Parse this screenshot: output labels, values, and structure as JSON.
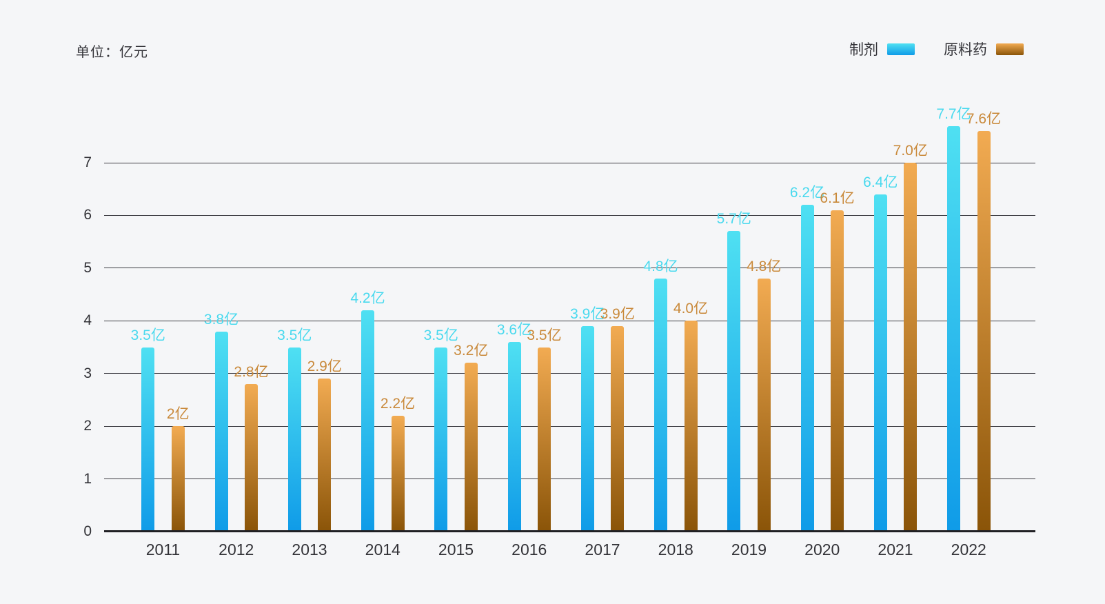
{
  "unit_label": "单位：亿元",
  "legend": {
    "items": [
      {
        "label": "制剂"
      },
      {
        "label": "原料药"
      }
    ]
  },
  "colors": {
    "background": "#f5f6f8",
    "gridline": "#3a3a40",
    "axis": "#202024",
    "text": "#323237"
  },
  "chart_data": {
    "type": "bar",
    "title": "",
    "xlabel": "",
    "ylabel": "单位：亿元",
    "categories": [
      "2011",
      "2012",
      "2013",
      "2014",
      "2015",
      "2016",
      "2017",
      "2018",
      "2019",
      "2020",
      "2021",
      "2022"
    ],
    "series": [
      {
        "name": "制剂",
        "values": [
          3.5,
          3.8,
          3.5,
          4.2,
          3.5,
          3.6,
          3.9,
          4.8,
          5.7,
          6.2,
          6.4,
          7.7
        ],
        "labels": [
          "3.5亿",
          "3.8亿",
          "3.5亿",
          "4.2亿",
          "3.5亿",
          "3.6亿",
          "3.9亿",
          "4.8亿",
          "5.7亿",
          "6.2亿",
          "6.4亿",
          "7.7亿"
        ],
        "label_color": "#49d9ee",
        "gradient_top": "#4fe0f2",
        "gradient_bottom": "#0f9be8"
      },
      {
        "name": "原料药",
        "values": [
          2,
          2.8,
          2.9,
          2.2,
          3.2,
          3.5,
          3.9,
          4.0,
          4.8,
          6.1,
          7.0,
          7.6
        ],
        "labels": [
          "2亿",
          "2.8亿",
          "2.9亿",
          "2.2亿",
          "3.2亿",
          "3.5亿",
          "3.9亿",
          "4.0亿",
          "4.8亿",
          "6.1亿",
          "7.0亿",
          "7.6亿"
        ],
        "label_color": "#c9893a",
        "gradient_top": "#f2ab52",
        "gradient_bottom": "#8a5408"
      }
    ],
    "y_ticks": [
      0,
      1,
      2,
      3,
      4,
      5,
      6,
      7
    ],
    "ylim": [
      0,
      7
    ],
    "grid": true,
    "legend_position": "top-right"
  }
}
